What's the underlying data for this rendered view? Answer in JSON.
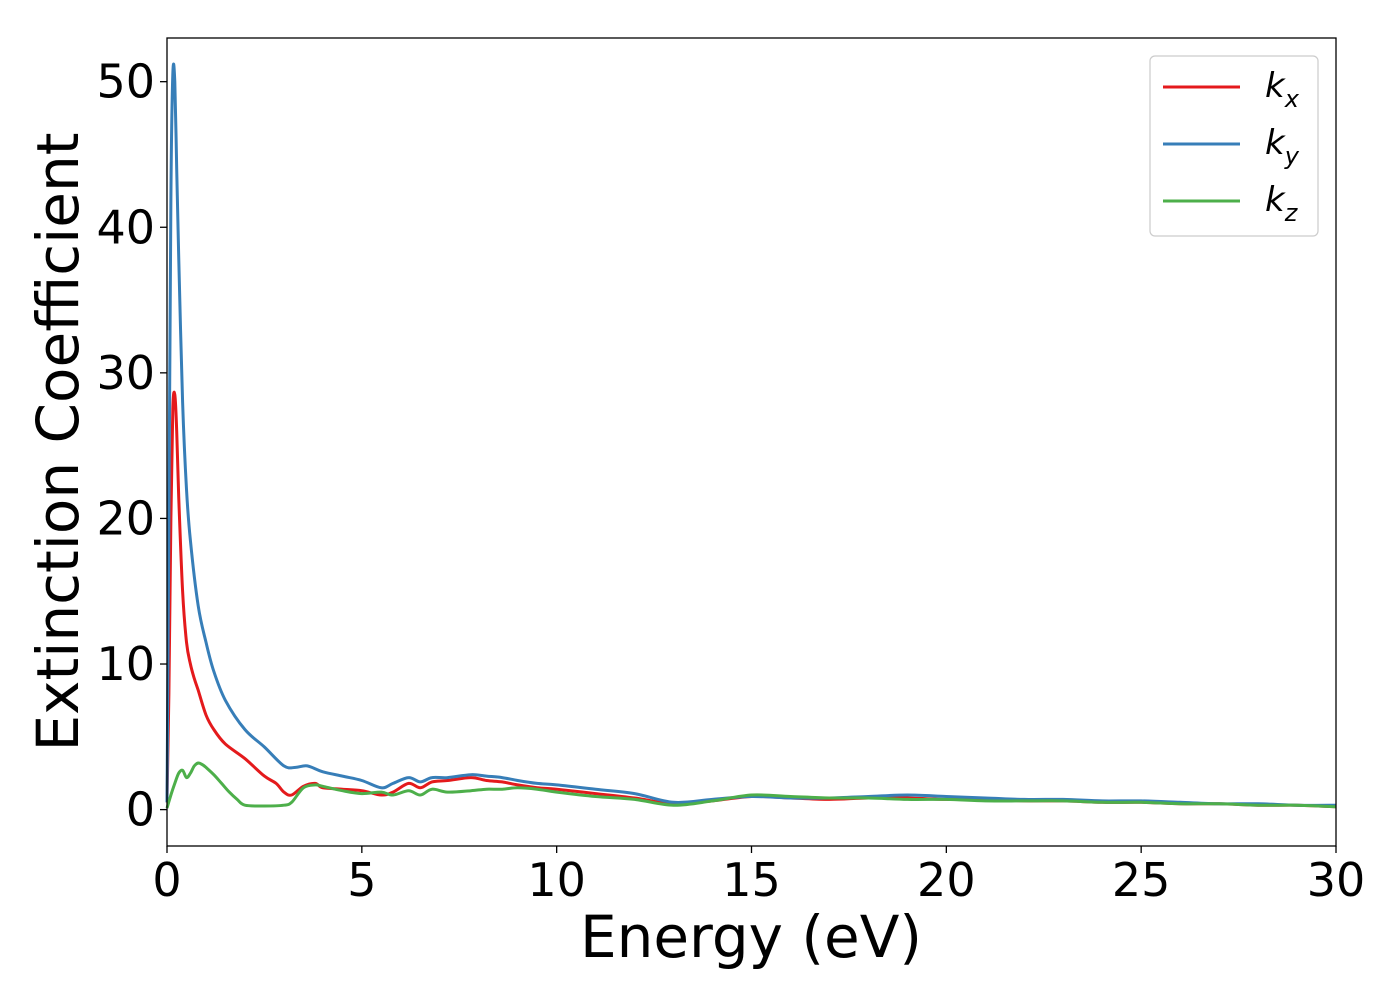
{
  "chart_data": {
    "type": "line",
    "title": "",
    "xlabel": "Energy (eV)",
    "ylabel": "Extinction Coefficient",
    "xlim": [
      0,
      30
    ],
    "ylim": [
      -2.5,
      53
    ],
    "xticks": [
      "0",
      "5",
      "10",
      "15",
      "20",
      "25",
      "30"
    ],
    "yticks": [
      "0",
      "10",
      "20",
      "30",
      "40",
      "50"
    ],
    "grid": false,
    "legend": "top-right",
    "series": [
      {
        "name": "k_x",
        "label_main": "k",
        "label_sub": "x",
        "color": "#e41a1c",
        "x": [
          0,
          0.05,
          0.1,
          0.15,
          0.2,
          0.25,
          0.3,
          0.4,
          0.5,
          0.6,
          0.7,
          0.8,
          1.0,
          1.2,
          1.5,
          2.0,
          2.5,
          2.8,
          3.0,
          3.2,
          3.5,
          3.8,
          4.0,
          4.5,
          5.0,
          5.5,
          5.8,
          6.2,
          6.5,
          6.8,
          7.2,
          7.8,
          8.2,
          8.6,
          9.0,
          9.5,
          10.0,
          11.0,
          12.0,
          13.0,
          14.0,
          15.0,
          16.0,
          17.0,
          18.0,
          19.0,
          20.0,
          21.0,
          22.0,
          23.0,
          24.0,
          25.0,
          26.0,
          27.0,
          28.0,
          29.0,
          30.0
        ],
        "y": [
          0.5,
          8,
          20,
          27.5,
          28.5,
          26,
          21.5,
          15,
          11.5,
          10,
          9,
          8.2,
          6.5,
          5.5,
          4.5,
          3.5,
          2.3,
          1.8,
          1.2,
          1.0,
          1.6,
          1.8,
          1.5,
          1.4,
          1.3,
          1.0,
          1.2,
          1.8,
          1.5,
          1.9,
          2.0,
          2.2,
          2.0,
          1.9,
          1.7,
          1.5,
          1.4,
          1.1,
          0.8,
          0.4,
          0.6,
          0.9,
          0.8,
          0.7,
          0.8,
          0.8,
          0.7,
          0.7,
          0.6,
          0.6,
          0.5,
          0.5,
          0.4,
          0.4,
          0.3,
          0.3,
          0.2
        ]
      },
      {
        "name": "k_y",
        "label_main": "k",
        "label_sub": "y",
        "color": "#377eb8",
        "x": [
          0,
          0.05,
          0.1,
          0.15,
          0.2,
          0.25,
          0.3,
          0.4,
          0.5,
          0.6,
          0.8,
          1.0,
          1.2,
          1.5,
          2.0,
          2.5,
          3.0,
          3.3,
          3.6,
          4.0,
          4.5,
          5.0,
          5.5,
          5.8,
          6.2,
          6.5,
          6.8,
          7.2,
          7.8,
          8.2,
          8.6,
          9.0,
          9.5,
          10.0,
          11.0,
          12.0,
          13.0,
          14.0,
          15.0,
          16.0,
          17.0,
          18.0,
          19.0,
          20.0,
          21.0,
          22.0,
          23.0,
          24.0,
          25.0,
          26.0,
          27.0,
          28.0,
          29.0,
          30.0
        ],
        "y": [
          0.5,
          20,
          42,
          50.5,
          50,
          44,
          38,
          28,
          22,
          18.5,
          14,
          11.5,
          9.5,
          7.5,
          5.5,
          4.3,
          3.0,
          2.9,
          3.0,
          2.6,
          2.3,
          2.0,
          1.5,
          1.8,
          2.2,
          1.9,
          2.2,
          2.2,
          2.4,
          2.3,
          2.2,
          2.0,
          1.8,
          1.7,
          1.4,
          1.1,
          0.5,
          0.7,
          0.9,
          0.8,
          0.8,
          0.9,
          1.0,
          0.9,
          0.8,
          0.7,
          0.7,
          0.6,
          0.6,
          0.5,
          0.4,
          0.4,
          0.3,
          0.3
        ]
      },
      {
        "name": "k_z",
        "label_main": "k",
        "label_sub": "z",
        "color": "#4daf4a",
        "x": [
          0,
          0.1,
          0.2,
          0.3,
          0.4,
          0.5,
          0.6,
          0.7,
          0.8,
          0.9,
          1.0,
          1.2,
          1.4,
          1.6,
          1.8,
          2.0,
          2.5,
          3.0,
          3.2,
          3.5,
          3.8,
          4.0,
          4.5,
          5.0,
          5.5,
          5.8,
          6.2,
          6.5,
          6.8,
          7.2,
          7.8,
          8.2,
          8.6,
          9.0,
          9.5,
          10.0,
          11.0,
          12.0,
          13.0,
          14.0,
          15.0,
          16.0,
          17.0,
          18.0,
          19.0,
          20.0,
          21.0,
          22.0,
          23.0,
          24.0,
          25.0,
          26.0,
          27.0,
          28.0,
          29.0,
          30.0
        ],
        "y": [
          0.1,
          1.0,
          1.8,
          2.5,
          2.7,
          2.2,
          2.5,
          3.0,
          3.2,
          3.1,
          2.9,
          2.4,
          1.8,
          1.2,
          0.7,
          0.3,
          0.25,
          0.3,
          0.5,
          1.5,
          1.7,
          1.6,
          1.3,
          1.1,
          1.2,
          1.0,
          1.3,
          1.0,
          1.4,
          1.2,
          1.3,
          1.4,
          1.4,
          1.5,
          1.4,
          1.2,
          0.9,
          0.7,
          0.3,
          0.6,
          1.0,
          0.9,
          0.8,
          0.8,
          0.7,
          0.7,
          0.6,
          0.6,
          0.6,
          0.5,
          0.5,
          0.4,
          0.4,
          0.3,
          0.3,
          0.2
        ]
      }
    ]
  }
}
